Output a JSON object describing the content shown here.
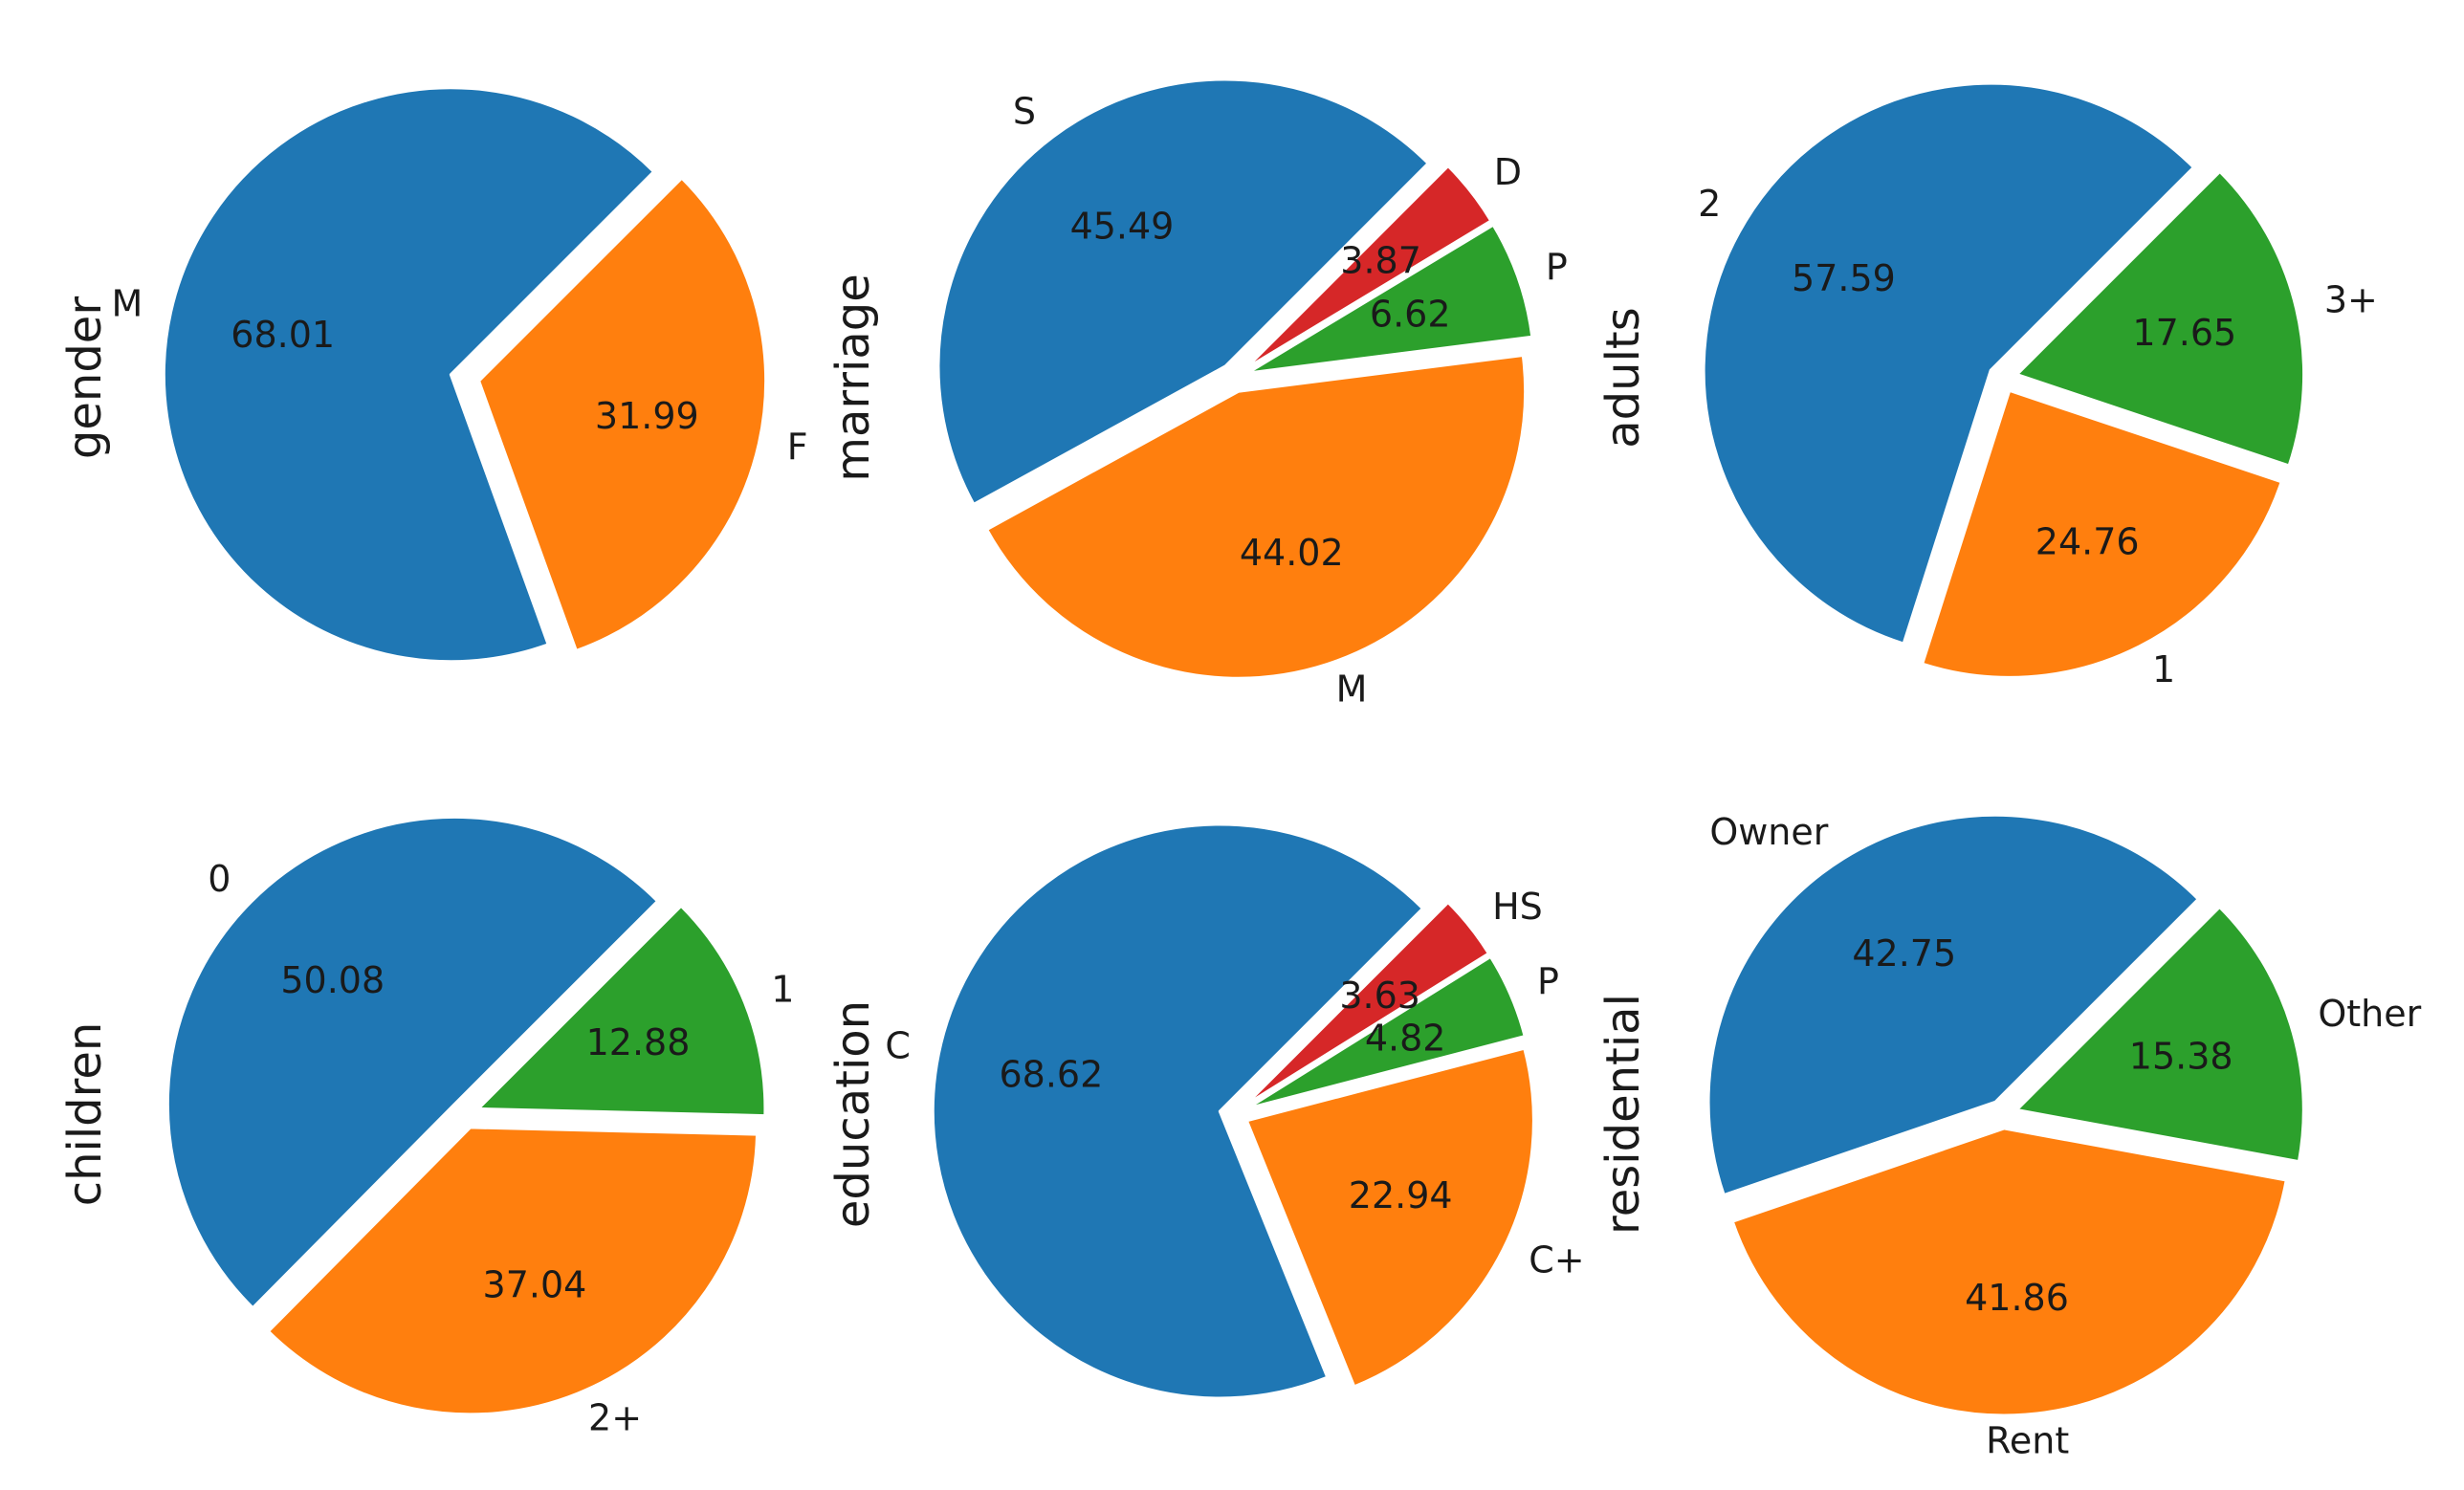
{
  "colors": {
    "blue": "#1f77b4",
    "orange": "#ff7f0e",
    "green": "#2ca02c",
    "red": "#d62728",
    "background": "#ffffff"
  },
  "chart_data": [
    {
      "type": "pie",
      "ylabel": "gender",
      "slices": [
        {
          "label": "M",
          "value": 68.01,
          "color": "#1f77b4"
        },
        {
          "label": "F",
          "value": 31.99,
          "color": "#ff7f0e"
        }
      ]
    },
    {
      "type": "pie",
      "ylabel": "marriage",
      "slices": [
        {
          "label": "S",
          "value": 45.49,
          "color": "#1f77b4"
        },
        {
          "label": "M",
          "value": 44.02,
          "color": "#ff7f0e"
        },
        {
          "label": "P",
          "value": 6.62,
          "color": "#2ca02c"
        },
        {
          "label": "D",
          "value": 3.87,
          "color": "#d62728"
        }
      ]
    },
    {
      "type": "pie",
      "ylabel": "adults",
      "slices": [
        {
          "label": "2",
          "value": 57.59,
          "color": "#1f77b4"
        },
        {
          "label": "1",
          "value": 24.76,
          "color": "#ff7f0e"
        },
        {
          "label": "3+",
          "value": 17.65,
          "color": "#2ca02c"
        }
      ]
    },
    {
      "type": "pie",
      "ylabel": "children",
      "slices": [
        {
          "label": "0",
          "value": 50.08,
          "color": "#1f77b4"
        },
        {
          "label": "2+",
          "value": 37.04,
          "color": "#ff7f0e"
        },
        {
          "label": "1",
          "value": 12.88,
          "color": "#2ca02c"
        }
      ]
    },
    {
      "type": "pie",
      "ylabel": "education",
      "slices": [
        {
          "label": "C",
          "value": 68.62,
          "color": "#1f77b4"
        },
        {
          "label": "C+",
          "value": 22.94,
          "color": "#ff7f0e"
        },
        {
          "label": "P",
          "value": 4.82,
          "color": "#2ca02c"
        },
        {
          "label": "HS",
          "value": 3.63,
          "color": "#d62728"
        }
      ]
    },
    {
      "type": "pie",
      "ylabel": "residential",
      "slices": [
        {
          "label": "Owner",
          "value": 42.75,
          "color": "#1f77b4"
        },
        {
          "label": "Rent",
          "value": 41.86,
          "color": "#ff7f0e"
        },
        {
          "label": "Other",
          "value": 15.38,
          "color": "#2ca02c"
        }
      ]
    }
  ]
}
